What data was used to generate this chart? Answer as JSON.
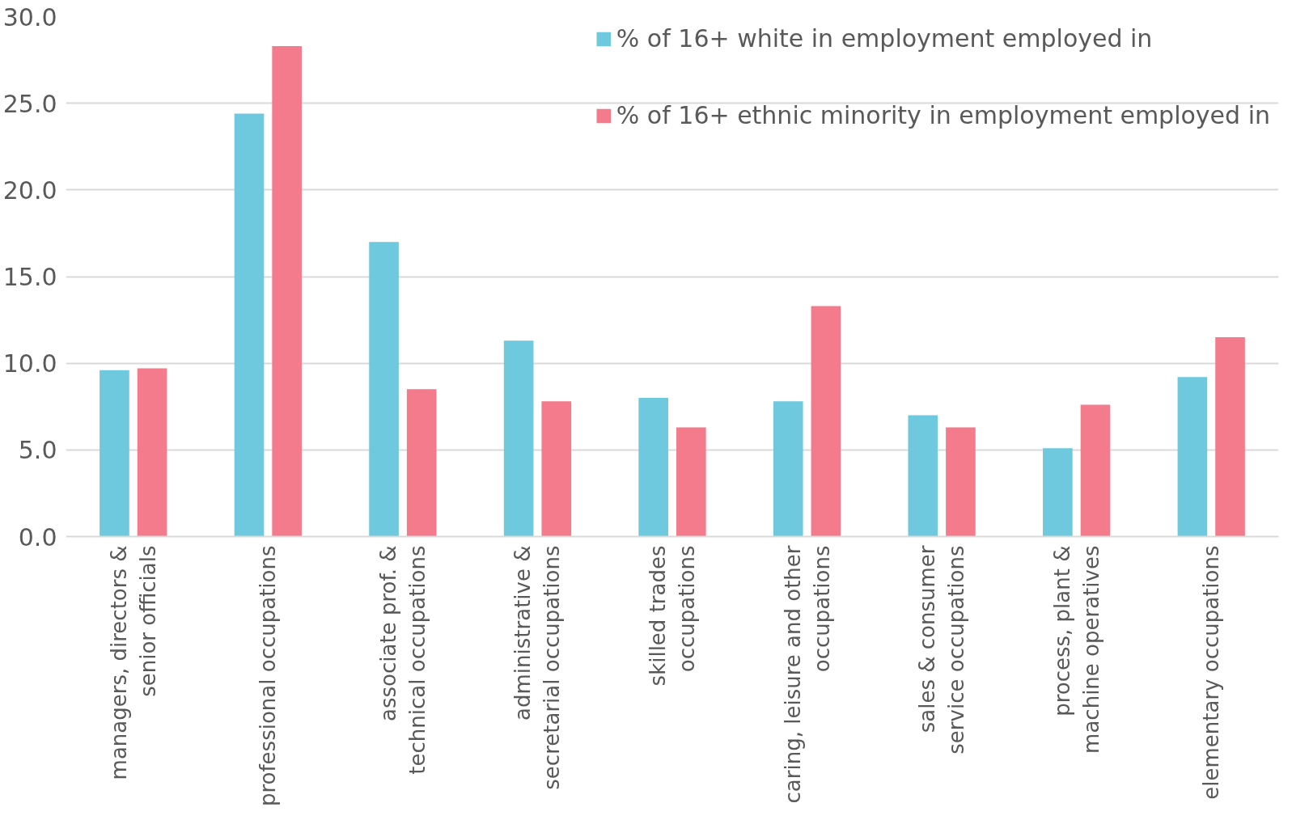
{
  "chart_data": {
    "type": "bar",
    "categories": [
      "managers, directors &\nsenior officials",
      "professional occupations",
      "associate prof. &\ntechnical occupations",
      "administrative &\nsecretarial occupations",
      "skilled trades\noccupations",
      "caring, leisure and other\noccupations",
      "sales & consumer\nservice occupations",
      "process, plant &\nmachine operatives",
      "elementary occupations"
    ],
    "series": [
      {
        "name": "% of 16+ white in employment employed in",
        "color": "#6ec9de",
        "values": [
          9.6,
          24.4,
          17.0,
          11.3,
          8.0,
          7.8,
          7.0,
          5.1,
          9.2
        ]
      },
      {
        "name": "% of 16+ ethnic minority in employment employed in",
        "color": "#f37b8c",
        "values": [
          9.7,
          28.3,
          8.5,
          7.8,
          6.3,
          13.3,
          6.3,
          7.6,
          11.5
        ]
      }
    ],
    "ylim": [
      0,
      30
    ],
    "yticks": [
      {
        "value": 0,
        "label": "0.0"
      },
      {
        "value": 5,
        "label": "5.0"
      },
      {
        "value": 10,
        "label": "10.0"
      },
      {
        "value": 15,
        "label": "15.0"
      },
      {
        "value": 20,
        "label": "20.0"
      },
      {
        "value": 25,
        "label": "25.0"
      },
      {
        "value": 30,
        "label": "30.0"
      }
    ],
    "grid": "y",
    "legend": "top right"
  }
}
